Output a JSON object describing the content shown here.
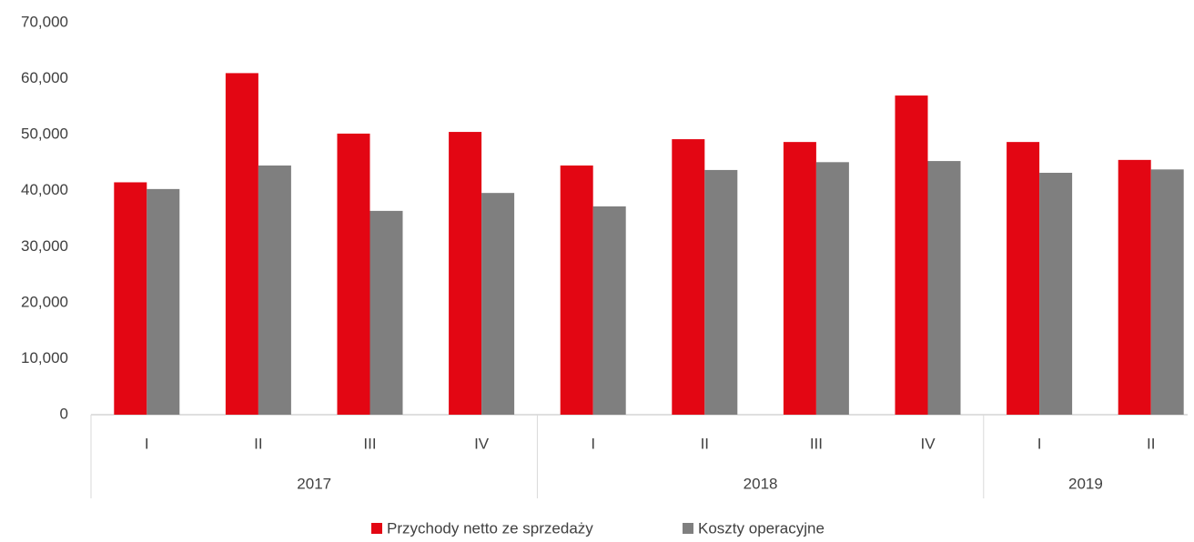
{
  "chart_data": {
    "type": "bar",
    "categories": [
      "I",
      "II",
      "III",
      "IV",
      "I",
      "II",
      "III",
      "IV",
      "I",
      "II"
    ],
    "category_groups": [
      "2017",
      "2017",
      "2017",
      "2017",
      "2018",
      "2018",
      "2018",
      "2018",
      "2019",
      "2019"
    ],
    "series": [
      {
        "name": "Przychody netto ze sprzedaży",
        "color": "#e30613",
        "values": [
          41500,
          61000,
          50200,
          50500,
          44500,
          49200,
          48700,
          57000,
          48700,
          45500
        ]
      },
      {
        "name": "Koszty operacyjne",
        "color": "#7f7f7f",
        "values": [
          40300,
          44500,
          36400,
          39600,
          37200,
          43700,
          45100,
          45300,
          43200,
          43800
        ]
      }
    ],
    "ylim": [
      0,
      70000
    ],
    "yticks": [
      0,
      {
        "value": 10000,
        "label": "10,000"
      },
      {
        "value": 20000,
        "label": "20,000"
      },
      {
        "value": 30000,
        "label": "30,000"
      },
      {
        "value": 40000,
        "label": "40,000"
      },
      {
        "value": 50000,
        "label": "50,000"
      },
      {
        "value": 60000,
        "label": "60,000"
      },
      {
        "value": 70000,
        "label": "70,000"
      }
    ],
    "grid": false,
    "legend": "bottom"
  }
}
